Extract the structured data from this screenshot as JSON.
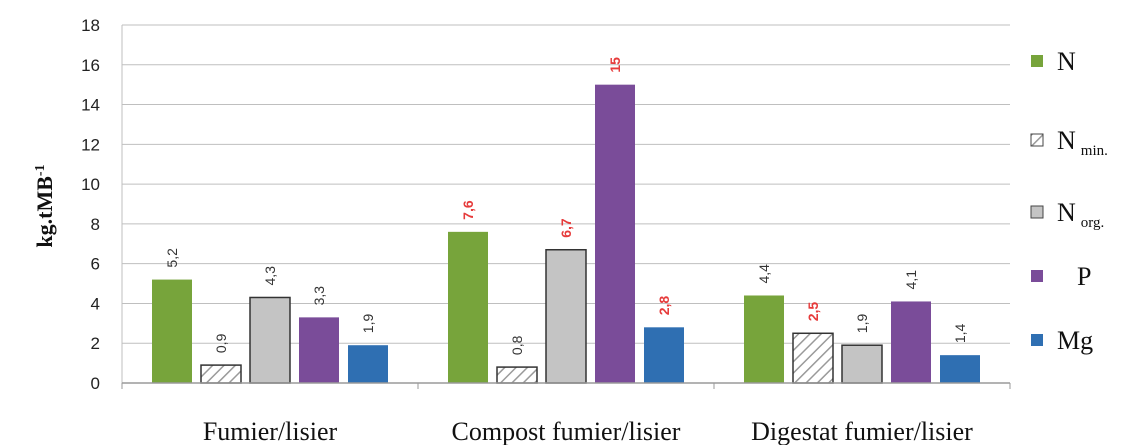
{
  "chart_data": {
    "type": "bar",
    "categories": [
      "Fumier/lisier",
      "Compost fumier/lisier",
      "Digestat fumier/lisier"
    ],
    "ylabel": "kg.tMB-1",
    "ylabel_main": "kg.tMB",
    "ylabel_sup": "-1",
    "ylim": [
      0,
      18
    ],
    "yticks": [
      0,
      2,
      4,
      6,
      8,
      10,
      12,
      14,
      16,
      18
    ],
    "grid": true,
    "legend_position": "right",
    "series": [
      {
        "name": "N",
        "name_sub": "",
        "color": "#77a43b",
        "pattern": "solid",
        "values": [
          5.2,
          7.6,
          4.4
        ],
        "labels": [
          "5,2",
          "7,6",
          "4,4"
        ],
        "label_colors": [
          "#333333",
          "#e63b3b",
          "#333333"
        ]
      },
      {
        "name": "N min.",
        "name_main": "N",
        "name_sub": "min.",
        "color": "#ffffff",
        "pattern": "hatch",
        "values": [
          0.9,
          0.8,
          2.5
        ],
        "labels": [
          "0,9",
          "0,8",
          "2,5"
        ],
        "label_colors": [
          "#333333",
          "#333333",
          "#e63b3b"
        ]
      },
      {
        "name": "N org.",
        "name_main": "N",
        "name_sub": "org.",
        "color": "#c4c4c4",
        "pattern": "solid",
        "values": [
          4.3,
          6.7,
          1.9
        ],
        "labels": [
          "4,3",
          "6,7",
          "1,9"
        ],
        "label_colors": [
          "#333333",
          "#e63b3b",
          "#333333"
        ]
      },
      {
        "name": "P",
        "name_sub": "",
        "color": "#7a4c99",
        "pattern": "solid",
        "values": [
          3.3,
          15,
          4.1
        ],
        "labels": [
          "3,3",
          "15",
          "4,1"
        ],
        "label_colors": [
          "#333333",
          "#e63b3b",
          "#333333"
        ]
      },
      {
        "name": "Mg",
        "name_sub": "",
        "color": "#2f6fb2",
        "pattern": "solid",
        "values": [
          1.9,
          2.8,
          1.4
        ],
        "labels": [
          "1,9",
          "2,8",
          "1,4"
        ],
        "label_colors": [
          "#333333",
          "#e63b3b",
          "#333333"
        ]
      }
    ]
  }
}
